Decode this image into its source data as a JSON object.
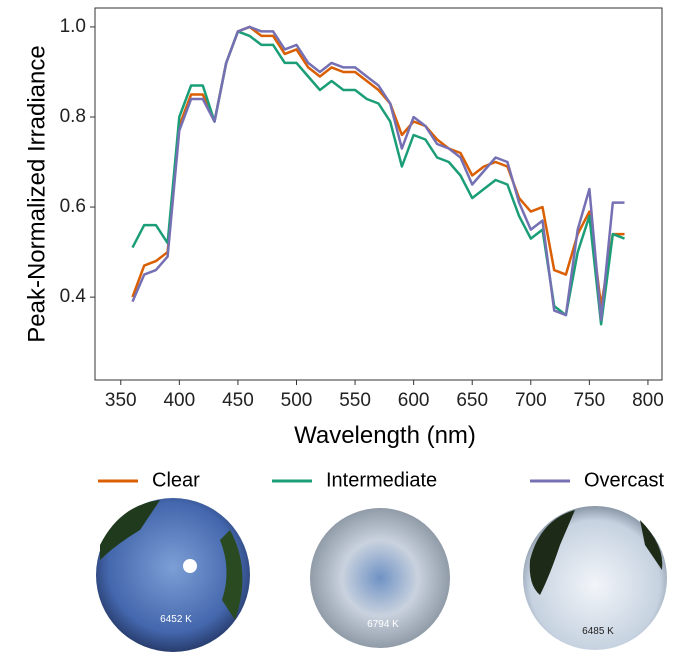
{
  "chart_data": {
    "type": "line",
    "y_label": "Peak-Normalized Irradiance",
    "x_label": "Wavelength (nm)",
    "x": [
      360,
      370,
      380,
      390,
      400,
      410,
      420,
      430,
      440,
      450,
      460,
      470,
      480,
      490,
      500,
      510,
      520,
      530,
      540,
      550,
      560,
      570,
      580,
      590,
      600,
      610,
      620,
      630,
      640,
      650,
      660,
      670,
      680,
      690,
      700,
      710,
      720,
      730,
      740,
      750,
      760,
      770,
      780
    ],
    "series": [
      {
        "name": "Clear",
        "color": "#d95f02",
        "values": [
          0.4,
          0.47,
          0.48,
          0.5,
          0.78,
          0.85,
          0.85,
          0.79,
          0.92,
          0.99,
          1.0,
          0.98,
          0.98,
          0.94,
          0.95,
          0.91,
          0.89,
          0.91,
          0.9,
          0.9,
          0.88,
          0.86,
          0.83,
          0.76,
          0.79,
          0.78,
          0.75,
          0.73,
          0.72,
          0.67,
          0.69,
          0.7,
          0.69,
          0.62,
          0.59,
          0.6,
          0.46,
          0.45,
          0.54,
          0.59,
          0.38,
          0.54,
          0.54
        ]
      },
      {
        "name": "Intermediate",
        "color": "#1b9e77",
        "values": [
          0.51,
          0.56,
          0.56,
          0.52,
          0.8,
          0.87,
          0.87,
          0.79,
          0.92,
          0.99,
          0.98,
          0.96,
          0.96,
          0.92,
          0.92,
          0.89,
          0.86,
          0.88,
          0.86,
          0.86,
          0.84,
          0.83,
          0.79,
          0.69,
          0.76,
          0.75,
          0.71,
          0.7,
          0.67,
          0.62,
          0.64,
          0.66,
          0.65,
          0.58,
          0.53,
          0.55,
          0.38,
          0.36,
          0.5,
          0.58,
          0.34,
          0.54,
          0.53
        ]
      },
      {
        "name": "Overcast",
        "color": "#7570b3",
        "values": [
          0.39,
          0.45,
          0.46,
          0.49,
          0.77,
          0.84,
          0.84,
          0.79,
          0.92,
          0.99,
          1.0,
          0.99,
          0.99,
          0.95,
          0.96,
          0.92,
          0.9,
          0.92,
          0.91,
          0.91,
          0.89,
          0.87,
          0.83,
          0.73,
          0.8,
          0.78,
          0.74,
          0.73,
          0.71,
          0.65,
          0.68,
          0.71,
          0.7,
          0.61,
          0.55,
          0.57,
          0.37,
          0.36,
          0.55,
          0.64,
          0.35,
          0.61,
          0.61
        ]
      }
    ],
    "xlim": [
      328,
      812
    ],
    "xticks": [
      350,
      400,
      450,
      500,
      550,
      600,
      650,
      700,
      750,
      800
    ],
    "ylim": [
      0.216,
      1.042
    ],
    "yticks": [
      0.4,
      0.6,
      0.8,
      {
        "value": 1,
        "label": "1.0"
      }
    ],
    "legend": "bottom"
  },
  "sky_images": [
    {
      "label": "6452 K"
    },
    {
      "label": "6794 K"
    },
    {
      "label": "6485 K"
    }
  ]
}
